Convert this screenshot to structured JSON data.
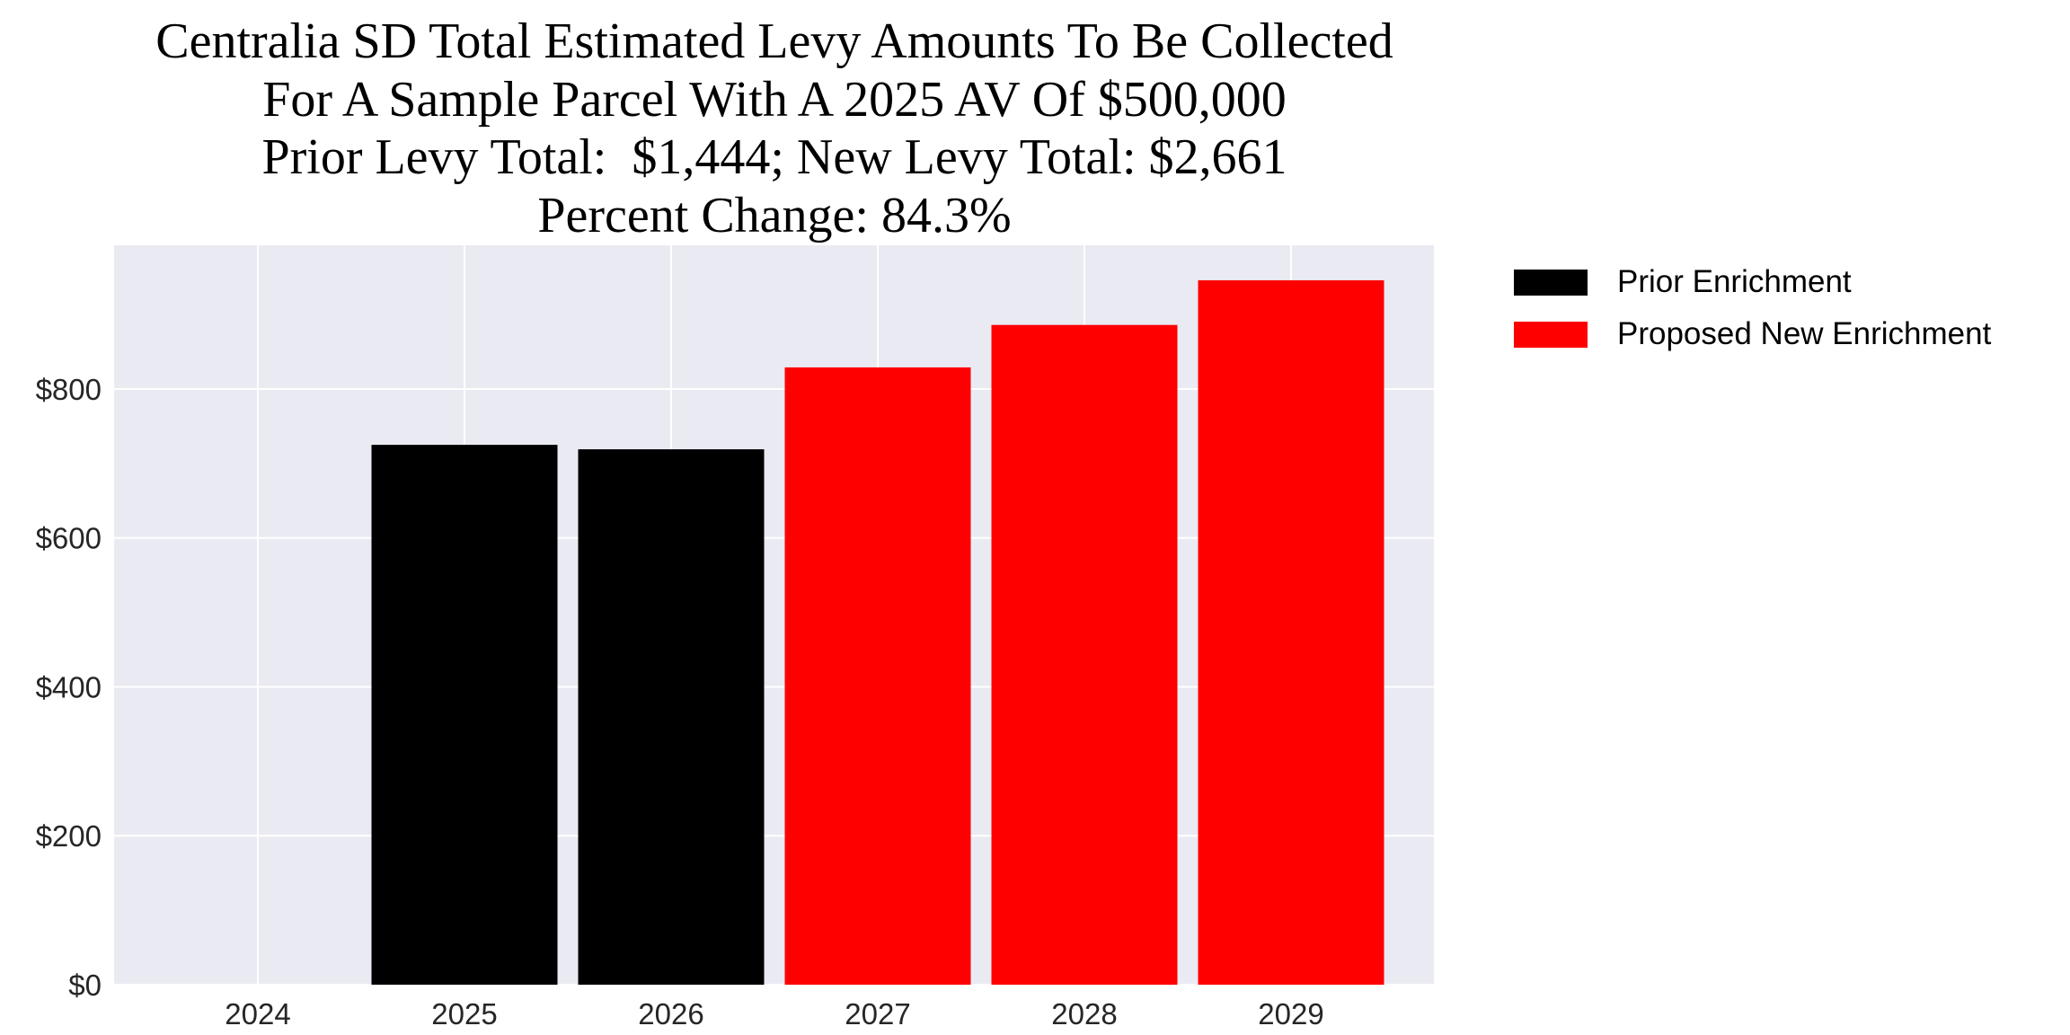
{
  "chart_data": {
    "type": "bar",
    "title_lines": [
      "Centralia SD Total Estimated Levy Amounts To Be Collected",
      "For A Sample Parcel With A 2025 AV Of $500,000",
      "Prior Levy Total:  $1,444; New Levy Total: $2,661",
      "Percent Change: 84.3%"
    ],
    "categories": [
      "2024",
      "2025",
      "2026",
      "2027",
      "2028",
      "2029"
    ],
    "series": [
      {
        "name": "Prior Enrichment",
        "color": "#000000",
        "values": [
          0,
          725,
          719,
          null,
          null,
          null
        ]
      },
      {
        "name": "Proposed New Enrichment",
        "color": "#ff0000",
        "values": [
          null,
          null,
          null,
          829,
          886,
          946
        ]
      }
    ],
    "xlabel": "",
    "ylabel": "",
    "ylim": [
      0,
      993
    ],
    "yticks": [
      0,
      200,
      400,
      600,
      800
    ],
    "ytick_labels": [
      "$0",
      "$200",
      "$400",
      "$600",
      "$800"
    ],
    "grid": true,
    "plot_background": "#eaeaf2",
    "legend_position": "outside-top-right"
  }
}
